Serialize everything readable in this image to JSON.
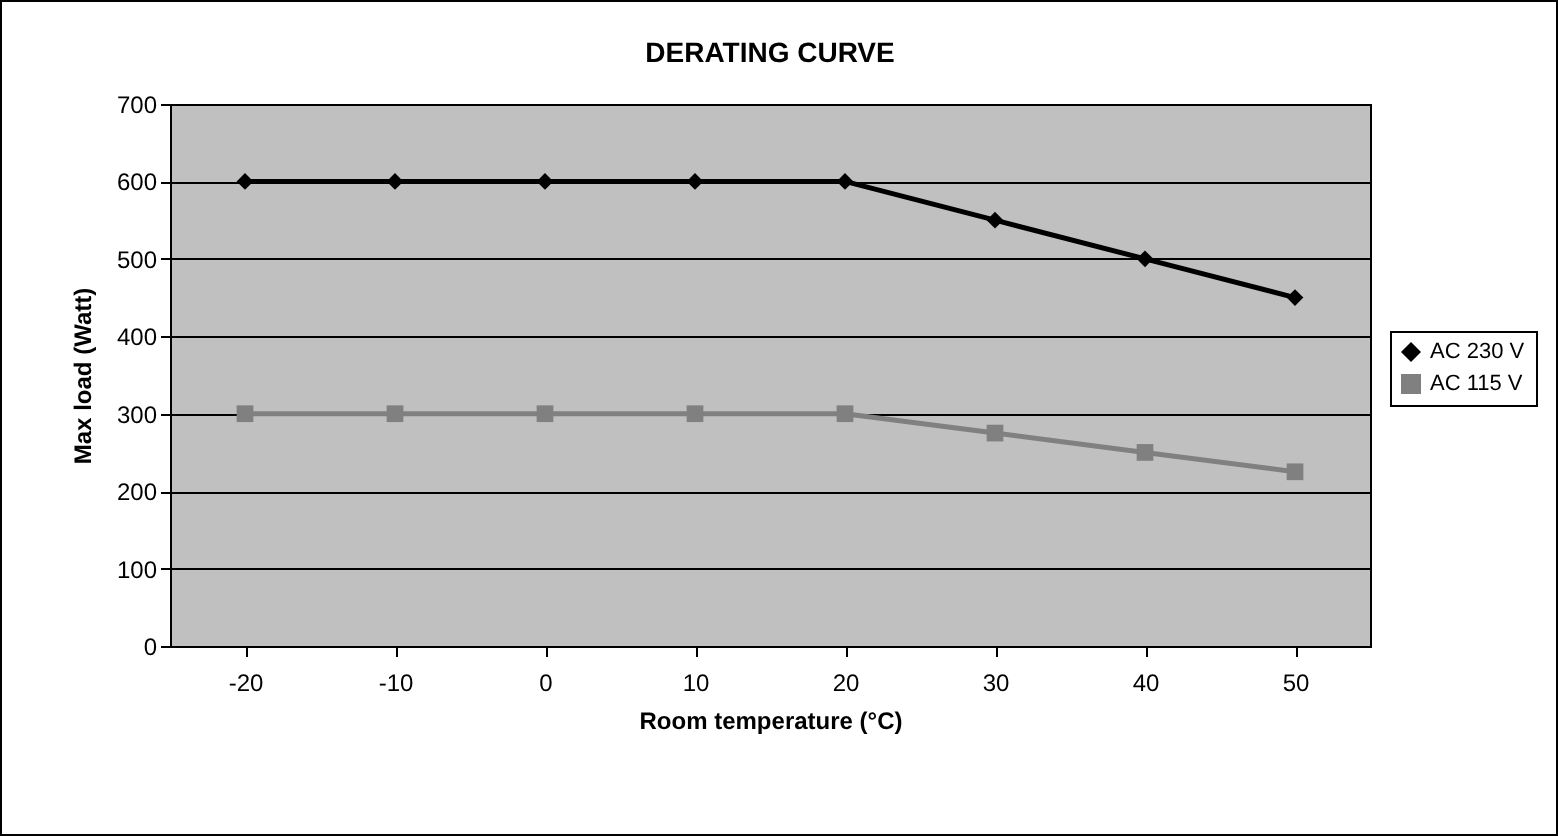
{
  "chart_data": {
    "type": "line",
    "title": "DERATING CURVE",
    "xlabel": "Room temperature (°C)",
    "ylabel": "Max load (Watt)",
    "categories": [
      "-20",
      "-10",
      "0",
      "10",
      "20",
      "30",
      "40",
      "50"
    ],
    "series": [
      {
        "name": "AC 230 V",
        "color": "#000000",
        "marker": "diamond",
        "values": [
          600,
          600,
          600,
          600,
          600,
          550,
          500,
          450
        ]
      },
      {
        "name": "AC 115 V",
        "color": "#808080",
        "marker": "square",
        "values": [
          300,
          300,
          300,
          300,
          300,
          275,
          250,
          225
        ]
      }
    ],
    "ylim": [
      0,
      700
    ],
    "yticks": [
      0,
      100,
      200,
      300,
      400,
      500,
      600,
      700
    ],
    "grid": "y",
    "legend": "right",
    "line_style": "solid"
  }
}
